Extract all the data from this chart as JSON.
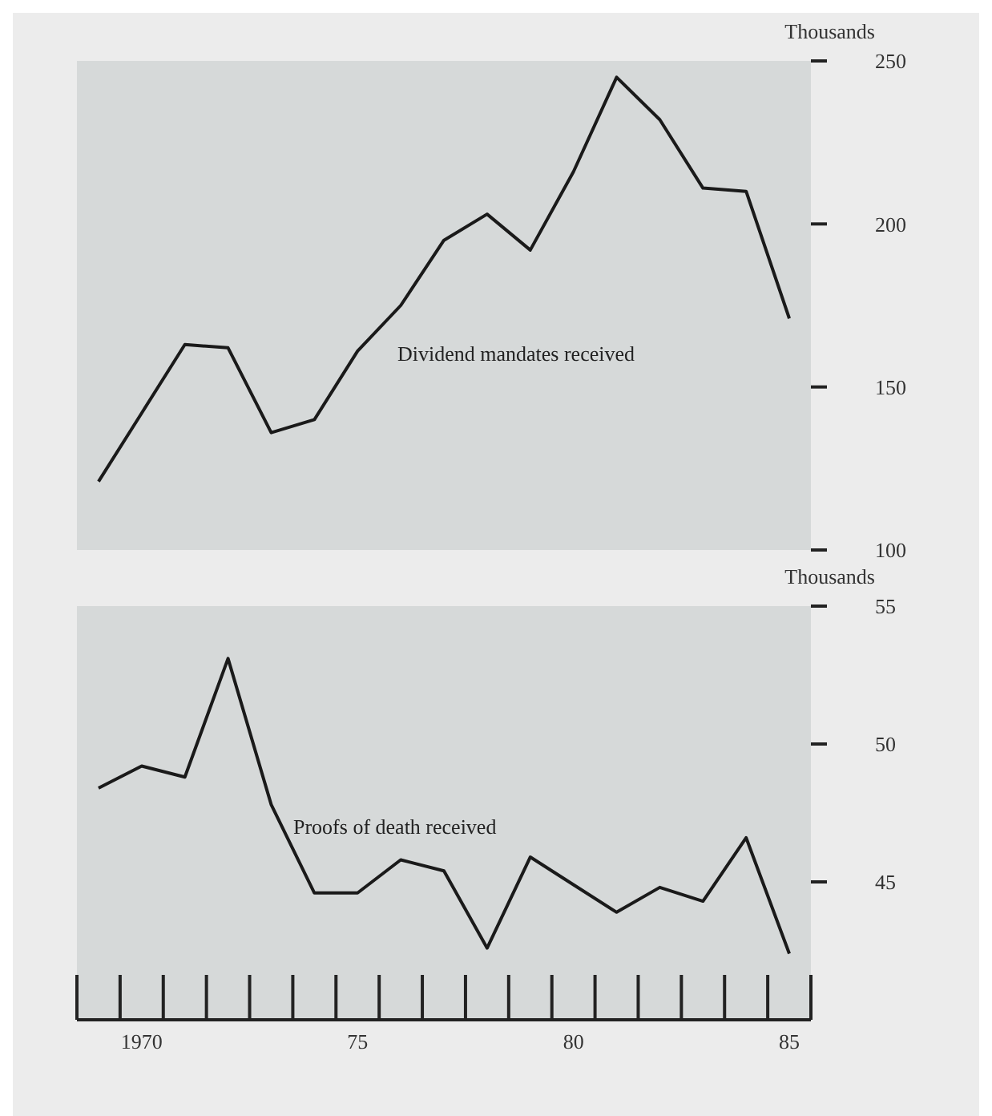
{
  "chart_data": [
    {
      "type": "line",
      "x": [
        1969,
        1970,
        1971,
        1972,
        1973,
        1974,
        1975,
        1976,
        1977,
        1978,
        1979,
        1980,
        1981,
        1982,
        1983,
        1984,
        1985
      ],
      "series": [
        {
          "name": "Dividend mandates received",
          "color": "#1a1a1a",
          "values": [
            121,
            142,
            163,
            162,
            136,
            140,
            161,
            175,
            195,
            203,
            192,
            216,
            245,
            232,
            211,
            210,
            171
          ]
        }
      ],
      "ylabel": "Thousands",
      "xlim": [
        1968.5,
        1985.5
      ],
      "ylim": [
        100,
        250
      ],
      "yticks": [
        100,
        150,
        200,
        250
      ],
      "tick_labels": "y",
      "grid": false,
      "legend": false,
      "marker": "none",
      "line_style": "solid"
    },
    {
      "type": "line",
      "x": [
        1969,
        1970,
        1971,
        1972,
        1973,
        1974,
        1975,
        1976,
        1977,
        1978,
        1979,
        1980,
        1981,
        1982,
        1983,
        1984,
        1985
      ],
      "series": [
        {
          "name": "Proofs of death received",
          "color": "#1a1a1a",
          "values": [
            48.4,
            49.2,
            48.8,
            53.1,
            47.8,
            44.6,
            44.6,
            45.8,
            45.4,
            42.6,
            45.9,
            44.9,
            43.9,
            44.8,
            44.3,
            46.6,
            42.4
          ]
        }
      ],
      "ylabel": "Thousands",
      "xlim": [
        1968.5,
        1985.5
      ],
      "ylim": [
        40,
        55
      ],
      "yticks": [
        45,
        50,
        55
      ],
      "xticks": [
        1970,
        {
          "value": 1975,
          "label": "75"
        },
        {
          "value": 1980,
          "label": "80"
        },
        {
          "value": 1985,
          "label": "85"
        }
      ],
      "grid": false,
      "legend": false,
      "marker": "none",
      "line_style": "solid"
    }
  ]
}
